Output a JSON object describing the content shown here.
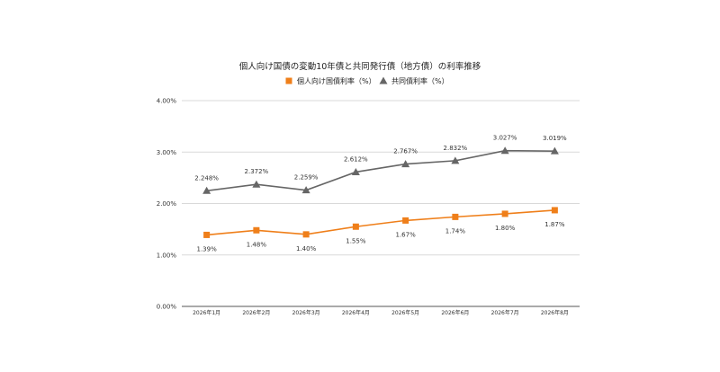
{
  "chart_data": {
    "type": "line",
    "title": "個人向け国債の変動10年債と共同発行債（地方債）の利率推移",
    "categories": [
      "2026年1月",
      "2026年2月",
      "2026年3月",
      "2026年4月",
      "2026年5月",
      "2026年6月",
      "2026年7月",
      "2026年8月"
    ],
    "series": [
      {
        "name": "個人向け国債利率（%）",
        "marker": "square",
        "color": "#ef7f1a",
        "values": [
          1.39,
          1.48,
          1.4,
          1.55,
          1.67,
          1.74,
          1.8,
          1.87
        ],
        "labels": [
          "1.39%",
          "1.48%",
          "1.40%",
          "1.55%",
          "1.67%",
          "1.74%",
          "1.80%",
          "1.87%"
        ],
        "label_position": "below"
      },
      {
        "name": "共同債利率（%）",
        "marker": "triangle",
        "color": "#666666",
        "values": [
          2.248,
          2.372,
          2.259,
          2.612,
          2.767,
          2.832,
          3.027,
          3.019
        ],
        "labels": [
          "2.248%",
          "2.372%",
          "2.259%",
          "2.612%",
          "2.767%",
          "2.832%",
          "3.027%",
          "3.019%"
        ],
        "label_position": "above"
      }
    ],
    "ylim": [
      0,
      4
    ],
    "yticks": [
      0,
      1,
      2,
      3,
      4
    ],
    "ytick_labels": [
      "0.00%",
      "1.00%",
      "2.00%",
      "3.00%",
      "4.00%"
    ],
    "xlabel": "",
    "ylabel": "",
    "grid": true,
    "legend_position": "top-center"
  }
}
